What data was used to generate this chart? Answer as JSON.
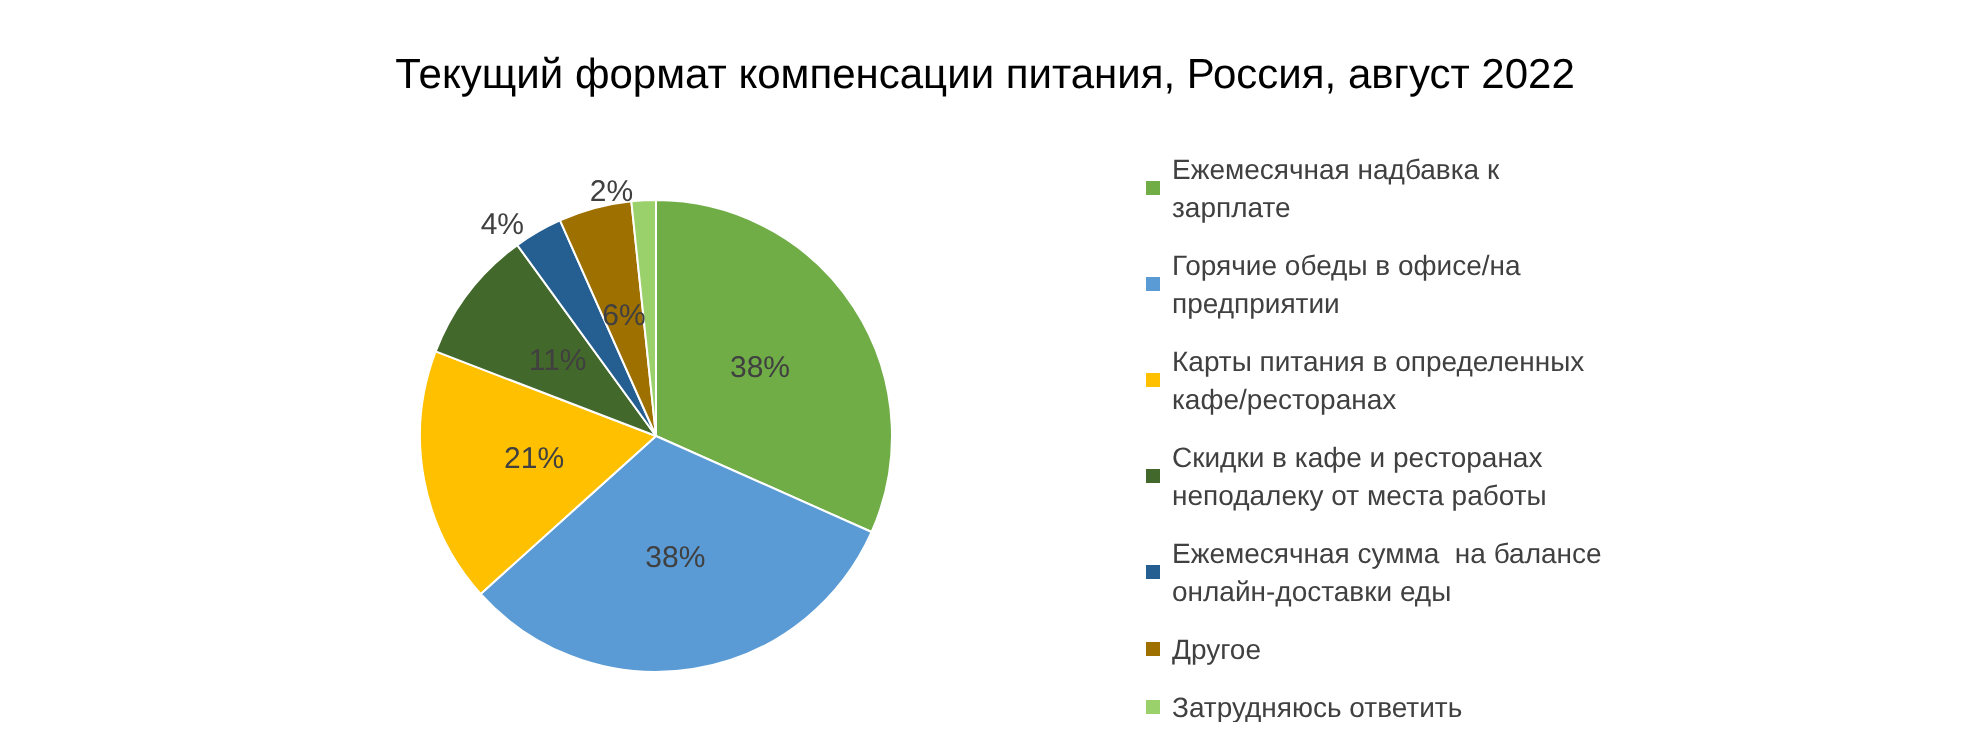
{
  "chart_data": {
    "type": "pie",
    "title": "Текущий формат компенсации питания, Россия, август 2022",
    "categories": [
      "Ежемесячная надбавка к зарплате",
      "Горячие обеды в офисе/на предприятии",
      "Карты питания в определенных кафе/ресторанах",
      "Скидки в кафе и ресторанах неподалеку от места работы",
      "Ежемесячная сумма  на балансе онлайн-доставки еды",
      "Другое",
      "Затрудняюсь ответить"
    ],
    "values": [
      38,
      38,
      21,
      11,
      4,
      6,
      2
    ],
    "value_labels": [
      "38%",
      "38%",
      "21%",
      "11%",
      "4%",
      "6%",
      "2%"
    ],
    "colors": [
      "#70ad47",
      "#5b9bd5",
      "#ffc000",
      "#43682b",
      "#255e91",
      "#9e7000",
      "#9bd16a"
    ],
    "legend": "right"
  }
}
